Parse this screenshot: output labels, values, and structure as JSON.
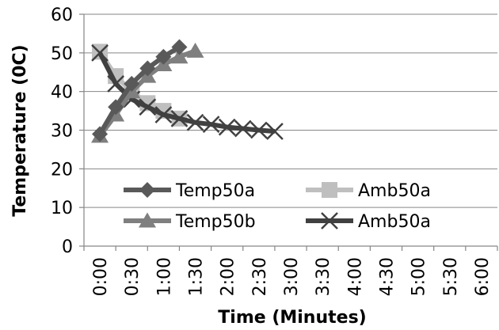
{
  "chart_data": {
    "type": "line",
    "xlabel": "Time (Minutes)",
    "ylabel": "Temperature (0C)",
    "ylim": [
      0,
      60
    ],
    "yticks": [
      "0",
      "10",
      "20",
      "30",
      "40",
      "50",
      "60"
    ],
    "categories": [
      "0:00",
      "0:30",
      "1:00",
      "1:30",
      "2:00",
      "2:30",
      "3:00",
      "3:30",
      "4:00",
      "4:30",
      "5:00",
      "5:30",
      "6:00"
    ],
    "grid": "horizontal",
    "legend_position": "bottom-center, inside plot",
    "series": [
      {
        "name": "Temp50a",
        "marker": "diamond",
        "color": "#595959",
        "x": [
          "0:00",
          "0:15",
          "0:30",
          "0:45",
          "1:00",
          "1:15"
        ],
        "values": [
          29,
          36,
          42,
          46,
          49,
          51.5
        ]
      },
      {
        "name": "Amb50a",
        "marker": "square",
        "color": "#bfbfbf",
        "x": [
          "0:00",
          "0:15",
          "0:30",
          "0:45",
          "1:00",
          "1:15"
        ],
        "values": [
          50.3,
          44,
          40,
          37,
          35,
          33
        ]
      },
      {
        "name": "Temp50b",
        "marker": "triangle",
        "color": "#7f7f7f",
        "x": [
          "0:00",
          "0:15",
          "0:30",
          "0:45",
          "1:00",
          "1:15",
          "1:30"
        ],
        "values": [
          28.5,
          34,
          40,
          44,
          47,
          49,
          50.5
        ]
      },
      {
        "name": "Amb50a",
        "marker": "x",
        "color": "#404040",
        "x": [
          "0:00",
          "0:15",
          "0:30",
          "0:45",
          "1:00",
          "1:15",
          "1:30",
          "1:45",
          "2:00",
          "2:15",
          "2:30",
          "2:45"
        ],
        "values": [
          50,
          42,
          38,
          36,
          34,
          33,
          32,
          31.5,
          30.8,
          30.4,
          30,
          29.7
        ]
      }
    ]
  }
}
